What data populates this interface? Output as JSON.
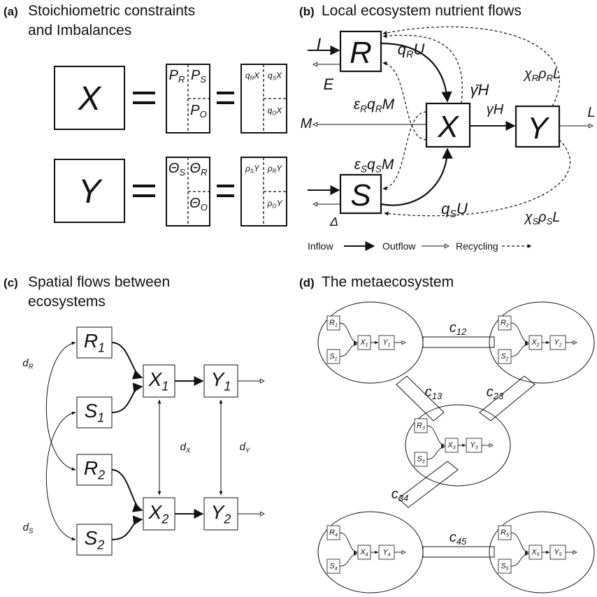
{
  "panels": [
    {
      "label": "(a)",
      "title": [
        "Stoichiometric constraints",
        "and Imbalances"
      ]
    },
    {
      "label": "(b)",
      "title": [
        "Local ecosystem nutrient flows"
      ]
    },
    {
      "label": "(c)",
      "title": [
        "Spatial flows between",
        "ecosystems"
      ]
    },
    {
      "label": "(d)",
      "title": [
        "The metaecosystem"
      ]
    }
  ],
  "panel_a": {
    "rows": [
      {
        "symbol": "X",
        "quotas": [
          [
            "P",
            "R"
          ],
          [
            "P",
            "S"
          ],
          [
            "P",
            "O"
          ]
        ],
        "amounts": [
          [
            "q",
            "R",
            "X"
          ],
          [
            "q",
            "S",
            "X"
          ],
          [
            "q",
            "O",
            "X"
          ]
        ]
      },
      {
        "symbol": "Y",
        "quotas": [
          [
            "Θ",
            "S"
          ],
          [
            "Θ",
            "R"
          ],
          [
            "Θ",
            "O"
          ]
        ],
        "amounts": [
          [
            "ρ",
            "S",
            "Y"
          ],
          [
            "ρ",
            "R",
            "Y"
          ],
          [
            "ρ",
            "O",
            "Y"
          ]
        ]
      }
    ]
  },
  "panel_b": {
    "compartments": [
      "R",
      "X",
      "Y",
      "S"
    ],
    "flows": [
      [
        "I"
      ],
      [
        "E"
      ],
      [
        "q",
        "R",
        "U"
      ],
      [
        "γ̄H"
      ],
      [
        "χ",
        "R",
        "ρ",
        "R",
        "L"
      ],
      [
        "ε",
        "R",
        "q",
        "R",
        "M"
      ],
      [
        "M"
      ],
      [
        "γH"
      ],
      [
        "L"
      ],
      [
        "ε",
        "S",
        "q",
        "S",
        "M"
      ],
      [
        "q",
        "S",
        "U"
      ],
      [
        "Δ"
      ],
      [
        "χ",
        "S",
        "ρ",
        "S",
        "L"
      ]
    ],
    "legend": [
      "Inflow",
      "Outflow",
      "Recycling"
    ]
  },
  "panel_c": {
    "nodes": [
      [
        "R",
        "1"
      ],
      [
        "S",
        "1"
      ],
      [
        "R",
        "2"
      ],
      [
        "S",
        "2"
      ],
      [
        "X",
        "1"
      ],
      [
        "Y",
        "1"
      ],
      [
        "X",
        "2"
      ],
      [
        "Y",
        "2"
      ]
    ],
    "dispersal": [
      [
        "d",
        "R"
      ],
      [
        "d",
        "S"
      ],
      [
        "d",
        "X"
      ],
      [
        "d",
        "Y"
      ]
    ]
  },
  "panel_d": {
    "patches": [
      {
        "nodes": [
          [
            "R",
            "1"
          ],
          [
            "S",
            "1"
          ],
          [
            "X",
            "1"
          ],
          [
            "Y",
            "1"
          ]
        ]
      },
      {
        "nodes": [
          [
            "R",
            "2"
          ],
          [
            "S",
            "2"
          ],
          [
            "X",
            "2"
          ],
          [
            "Y",
            "2"
          ]
        ]
      },
      {
        "nodes": [
          [
            "R",
            "3"
          ],
          [
            "S",
            "3"
          ],
          [
            "X",
            "3"
          ],
          [
            "Y",
            "3"
          ]
        ]
      },
      {
        "nodes": [
          [
            "R",
            "4"
          ],
          [
            "S",
            "4"
          ],
          [
            "X",
            "4"
          ],
          [
            "Y",
            "4"
          ]
        ]
      },
      {
        "nodes": [
          [
            "R",
            "5"
          ],
          [
            "S",
            "5"
          ],
          [
            "X",
            "5"
          ],
          [
            "Y",
            "5"
          ]
        ]
      }
    ],
    "corridors": [
      [
        "c",
        "12"
      ],
      [
        "c",
        "13"
      ],
      [
        "c",
        "23"
      ],
      [
        "c",
        "34"
      ],
      [
        "c",
        "45"
      ]
    ]
  }
}
